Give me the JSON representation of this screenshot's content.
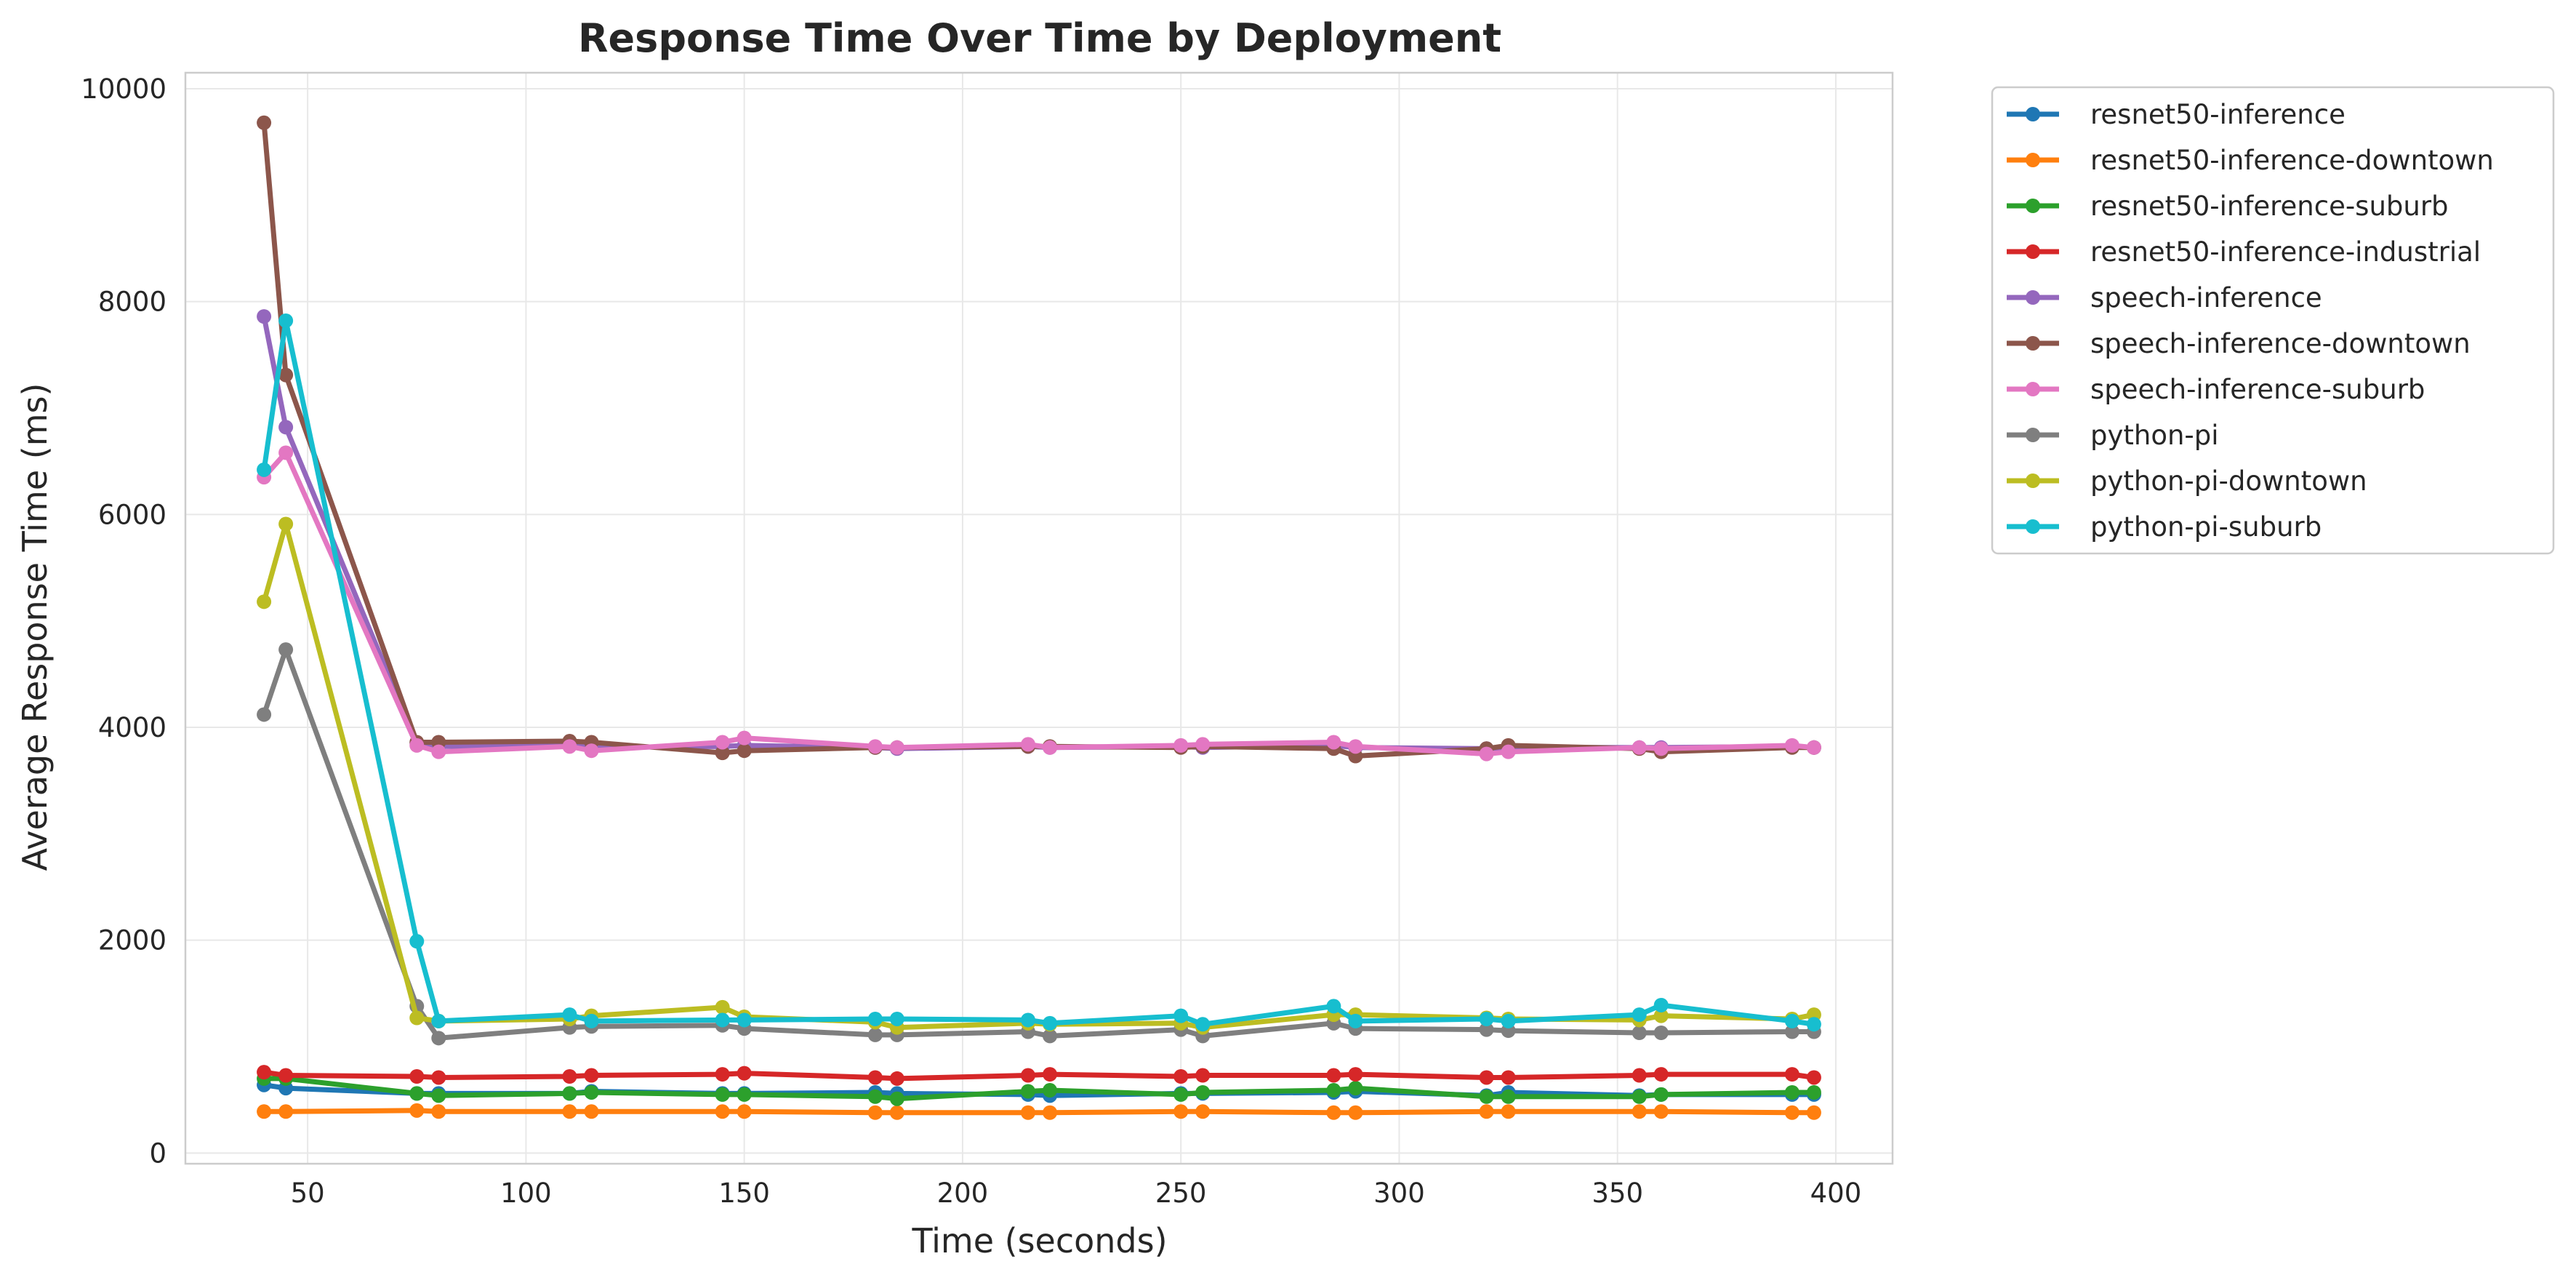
{
  "chart_data": {
    "type": "line",
    "title": "Response Time Over Time by Deployment",
    "xlabel": "Time (seconds)",
    "ylabel": "Average Response Time (ms)",
    "xlim": [
      22,
      413
    ],
    "ylim": [
      -100,
      10150
    ],
    "xticks": [
      50,
      100,
      150,
      200,
      250,
      300,
      350,
      400
    ],
    "yticks": [
      0,
      2000,
      4000,
      6000,
      8000,
      10000
    ],
    "grid": true,
    "legend_position": "outside-top-right",
    "series": [
      {
        "name": "resnet50-inference",
        "color": "#1f77b4",
        "x": [
          40,
          45,
          75,
          80,
          110,
          115,
          145,
          150,
          180,
          185,
          215,
          220,
          250,
          255,
          285,
          290,
          320,
          325,
          355,
          360,
          390,
          395
        ],
        "y": [
          640,
          610,
          560,
          560,
          560,
          580,
          560,
          560,
          570,
          560,
          550,
          540,
          560,
          560,
          570,
          580,
          540,
          570,
          540,
          550,
          550,
          550
        ]
      },
      {
        "name": "resnet50-inference-downtown",
        "color": "#ff7f0e",
        "x": [
          40,
          45,
          75,
          80,
          110,
          115,
          145,
          150,
          180,
          185,
          215,
          220,
          250,
          255,
          285,
          290,
          320,
          325,
          355,
          360,
          390,
          395
        ],
        "y": [
          390,
          390,
          400,
          390,
          390,
          390,
          390,
          390,
          380,
          380,
          380,
          380,
          390,
          390,
          380,
          380,
          390,
          390,
          390,
          390,
          380,
          380
        ]
      },
      {
        "name": "resnet50-inference-suburb",
        "color": "#2ca02c",
        "x": [
          40,
          45,
          75,
          80,
          110,
          115,
          145,
          150,
          180,
          185,
          215,
          220,
          250,
          255,
          285,
          290,
          320,
          325,
          355,
          360,
          390,
          395
        ],
        "y": [
          700,
          700,
          560,
          540,
          560,
          570,
          550,
          550,
          530,
          510,
          580,
          590,
          550,
          570,
          590,
          610,
          530,
          530,
          530,
          550,
          570,
          570
        ]
      },
      {
        "name": "resnet50-inference-industrial",
        "color": "#d62728",
        "x": [
          40,
          45,
          75,
          80,
          110,
          115,
          145,
          150,
          180,
          185,
          215,
          220,
          250,
          255,
          285,
          290,
          320,
          325,
          355,
          360,
          390,
          395
        ],
        "y": [
          760,
          730,
          720,
          710,
          720,
          730,
          740,
          750,
          710,
          700,
          730,
          740,
          720,
          730,
          730,
          740,
          710,
          710,
          730,
          740,
          740,
          710
        ]
      },
      {
        "name": "speech-inference",
        "color": "#9467bd",
        "x": [
          40,
          45,
          75,
          80,
          110,
          115,
          145,
          150,
          180,
          185,
          215,
          220,
          250,
          255,
          285,
          290,
          320,
          325,
          355,
          360,
          390,
          395
        ],
        "y": [
          7860,
          6820,
          3850,
          3820,
          3830,
          3810,
          3820,
          3830,
          3810,
          3800,
          3820,
          3810,
          3820,
          3810,
          3830,
          3810,
          3800,
          3810,
          3810,
          3810,
          3820,
          3810
        ]
      },
      {
        "name": "speech-inference-downtown",
        "color": "#8c564b",
        "x": [
          40,
          45,
          75,
          80,
          110,
          115,
          145,
          150,
          180,
          185,
          215,
          220,
          250,
          255,
          285,
          290,
          320,
          325,
          355,
          360,
          390,
          395
        ],
        "y": [
          9680,
          7310,
          3860,
          3860,
          3870,
          3860,
          3760,
          3780,
          3810,
          3810,
          3820,
          3820,
          3810,
          3820,
          3800,
          3730,
          3800,
          3830,
          3800,
          3770,
          3810,
          3810
        ]
      },
      {
        "name": "speech-inference-suburb",
        "color": "#e377c2",
        "x": [
          40,
          45,
          75,
          80,
          110,
          115,
          145,
          150,
          180,
          185,
          215,
          220,
          250,
          255,
          285,
          290,
          320,
          325,
          355,
          360,
          390,
          395
        ],
        "y": [
          6350,
          6580,
          3830,
          3770,
          3820,
          3780,
          3860,
          3900,
          3820,
          3810,
          3840,
          3810,
          3830,
          3840,
          3860,
          3820,
          3750,
          3770,
          3810,
          3800,
          3830,
          3810
        ]
      },
      {
        "name": "python-pi",
        "color": "#7f7f7f",
        "x": [
          40,
          45,
          75,
          80,
          110,
          115,
          145,
          150,
          180,
          185,
          215,
          220,
          250,
          255,
          285,
          290,
          320,
          325,
          355,
          360,
          390,
          395
        ],
        "y": [
          4120,
          4730,
          1380,
          1080,
          1180,
          1190,
          1200,
          1170,
          1110,
          1110,
          1140,
          1100,
          1160,
          1100,
          1220,
          1170,
          1160,
          1150,
          1130,
          1130,
          1140,
          1140
        ]
      },
      {
        "name": "python-pi-downtown",
        "color": "#bcbd22",
        "x": [
          40,
          45,
          75,
          80,
          110,
          115,
          145,
          150,
          180,
          185,
          215,
          220,
          250,
          255,
          285,
          290,
          320,
          325,
          355,
          360,
          390,
          395
        ],
        "y": [
          5180,
          5910,
          1270,
          1240,
          1260,
          1290,
          1370,
          1280,
          1230,
          1180,
          1220,
          1210,
          1220,
          1180,
          1300,
          1300,
          1270,
          1260,
          1250,
          1290,
          1260,
          1300
        ]
      },
      {
        "name": "python-pi-suburb",
        "color": "#17becf",
        "x": [
          40,
          45,
          75,
          80,
          110,
          115,
          145,
          150,
          180,
          185,
          215,
          220,
          250,
          255,
          285,
          290,
          320,
          325,
          355,
          360,
          390,
          395
        ],
        "y": [
          6420,
          7820,
          1990,
          1240,
          1300,
          1240,
          1250,
          1250,
          1260,
          1260,
          1250,
          1220,
          1290,
          1210,
          1380,
          1240,
          1260,
          1240,
          1300,
          1390,
          1240,
          1210
        ]
      }
    ]
  }
}
